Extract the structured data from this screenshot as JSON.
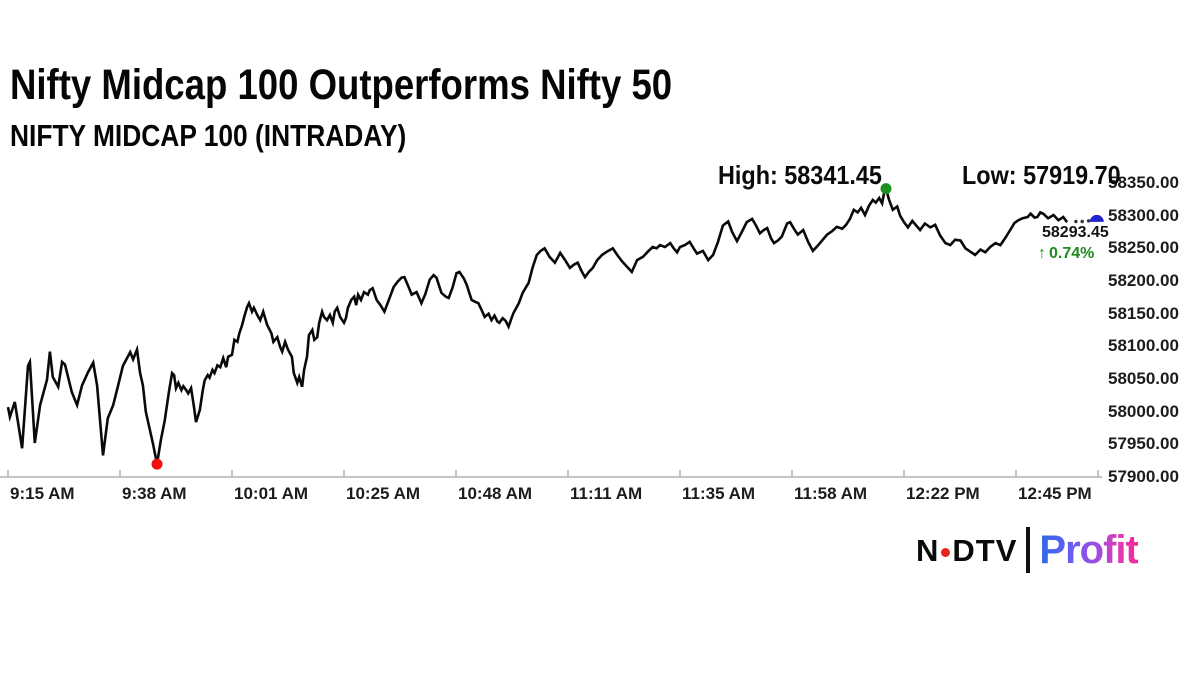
{
  "header": {
    "title": "Nifty Midcap 100 Outperforms Nifty 50",
    "subtitle": "NIFTY MIDCAP 100 (INTRADAY)"
  },
  "annotations": {
    "high_label": "High: 58341.45",
    "low_label": "Low: 57919.70",
    "last_price": "58293.45",
    "change_arrow": "↑",
    "change_pct": "0.74%"
  },
  "logo": {
    "ndtv_n": "N",
    "ndtv_rest": "DTV",
    "profit": "Profit"
  },
  "colors": {
    "line": "#0a0a0a",
    "low_dot": "#f20d0d",
    "high_dot": "#1f8f1f",
    "last_marker": "#2323cf",
    "change_green": "#1e8a1e",
    "axis_gray": "#b3b3b3",
    "ndtv_red": "#e8231e",
    "profit_gradient_start": "#2d6ae6",
    "profit_gradient_end": "#f1279b"
  },
  "chart_data": {
    "type": "line",
    "title": "NIFTY MIDCAP 100 (INTRADAY)",
    "xlabel": "",
    "ylabel": "",
    "ylim": [
      57900,
      58350
    ],
    "grid": false,
    "legend": "none",
    "x_tick_labels": [
      "9:15 AM",
      "9:38 AM",
      "10:01 AM",
      "10:25 AM",
      "10:48 AM",
      "11:11 AM",
      "11:35 AM",
      "11:58 AM",
      "12:22 PM",
      "12:45 PM"
    ],
    "y_tick_labels": [
      "58350.00",
      "58300.00",
      "58250.00",
      "58200.00",
      "58150.00",
      "58100.00",
      "58050.00",
      "58000.00",
      "57950.00",
      "57900.00"
    ],
    "minutes_per_x_tick": 23,
    "summary": {
      "high": 58341.45,
      "low": 57919.7,
      "last": 58293.45,
      "change_pct": 0.74
    },
    "markers": {
      "low": {
        "minute": 30.6,
        "value": 57919.7
      },
      "high": {
        "minute": 180.3,
        "value": 58341.45
      },
      "last": {
        "minute": 223.6,
        "value": 58293.45
      }
    },
    "tail_dots": [
      [
        219.3,
        58291
      ],
      [
        220.6,
        58291
      ],
      [
        221.9,
        58292
      ]
    ],
    "series": [
      {
        "name": "NIFTY MIDCAP 100",
        "points": [
          [
            0,
            58007
          ],
          [
            0.4,
            57992
          ],
          [
            1.4,
            58015
          ],
          [
            2.9,
            57944
          ],
          [
            4.1,
            58070
          ],
          [
            4.5,
            58076
          ],
          [
            5.5,
            57952
          ],
          [
            6.6,
            58010
          ],
          [
            8,
            58049
          ],
          [
            8.6,
            58092
          ],
          [
            9.2,
            58053
          ],
          [
            10.3,
            58038
          ],
          [
            11.1,
            58076
          ],
          [
            11.7,
            58072
          ],
          [
            13.1,
            58030
          ],
          [
            14.2,
            58010
          ],
          [
            15.2,
            58040
          ],
          [
            16.4,
            58060
          ],
          [
            17.5,
            58075
          ],
          [
            18.3,
            58040
          ],
          [
            19.5,
            57933
          ],
          [
            20.5,
            57990
          ],
          [
            21.6,
            58010
          ],
          [
            22.6,
            58040
          ],
          [
            23.6,
            58070
          ],
          [
            25.1,
            58091
          ],
          [
            25.7,
            58080
          ],
          [
            26.5,
            58095
          ],
          [
            27.1,
            58060
          ],
          [
            27.7,
            58040
          ],
          [
            28.3,
            58000
          ],
          [
            29.2,
            57970
          ],
          [
            29.8,
            57950
          ],
          [
            30.6,
            57920
          ],
          [
            31.4,
            57957
          ],
          [
            32.2,
            57987
          ],
          [
            32.5,
            58003
          ],
          [
            33.1,
            58033
          ],
          [
            33.7,
            58059
          ],
          [
            34.1,
            58056
          ],
          [
            34.5,
            58036
          ],
          [
            35,
            58044
          ],
          [
            35.6,
            58033
          ],
          [
            36,
            58039
          ],
          [
            36.6,
            58033
          ],
          [
            37,
            58028
          ],
          [
            37.6,
            58036
          ],
          [
            38.2,
            58007
          ],
          [
            38.6,
            57984
          ],
          [
            39,
            57993
          ],
          [
            39.4,
            58003
          ],
          [
            40,
            58033
          ],
          [
            40.4,
            58048
          ],
          [
            41,
            58056
          ],
          [
            41.4,
            58052
          ],
          [
            42,
            58064
          ],
          [
            42.4,
            58059
          ],
          [
            43,
            58071
          ],
          [
            43.6,
            58068
          ],
          [
            44.2,
            58082
          ],
          [
            44.8,
            58068
          ],
          [
            45.2,
            58084
          ],
          [
            46,
            58087
          ],
          [
            46.5,
            58110
          ],
          [
            47.1,
            58107
          ],
          [
            47.5,
            58120
          ],
          [
            48.1,
            58133
          ],
          [
            48.5,
            58145
          ],
          [
            49.1,
            58160
          ],
          [
            49.5,
            58166
          ],
          [
            50.1,
            58153
          ],
          [
            50.5,
            58159
          ],
          [
            51.2,
            58148
          ],
          [
            51.8,
            58140
          ],
          [
            52.4,
            58153
          ],
          [
            53.2,
            58133
          ],
          [
            54.1,
            58120
          ],
          [
            54.5,
            58107
          ],
          [
            55.3,
            58114
          ],
          [
            55.9,
            58099
          ],
          [
            56.3,
            58092
          ],
          [
            56.9,
            58107
          ],
          [
            57.5,
            58095
          ],
          [
            58.3,
            58084
          ],
          [
            58.7,
            58059
          ],
          [
            59.4,
            58044
          ],
          [
            59.8,
            58053
          ],
          [
            60.4,
            58038
          ],
          [
            60.8,
            58064
          ],
          [
            61.4,
            58084
          ],
          [
            61.8,
            58117
          ],
          [
            62.5,
            58125
          ],
          [
            62.9,
            58110
          ],
          [
            63.5,
            58114
          ],
          [
            63.9,
            58136
          ],
          [
            64.5,
            58153
          ],
          [
            64.9,
            58145
          ],
          [
            65.5,
            58140
          ],
          [
            66.1,
            58148
          ],
          [
            66.7,
            58136
          ],
          [
            67.1,
            58153
          ],
          [
            67.6,
            58159
          ],
          [
            68.2,
            58145
          ],
          [
            69,
            58136
          ],
          [
            69.4,
            58143
          ],
          [
            69.8,
            58159
          ],
          [
            70.5,
            58171
          ],
          [
            71.1,
            58176
          ],
          [
            71.5,
            58163
          ],
          [
            71.9,
            58179
          ],
          [
            72.5,
            58171
          ],
          [
            73.1,
            58183
          ],
          [
            73.9,
            58179
          ],
          [
            74.3,
            58186
          ],
          [
            74.9,
            58189
          ],
          [
            75.7,
            58171
          ],
          [
            76.5,
            58163
          ],
          [
            77.3,
            58153
          ],
          [
            78.4,
            58175
          ],
          [
            79.2,
            58191
          ],
          [
            80,
            58199
          ],
          [
            80.8,
            58205
          ],
          [
            81.4,
            58206
          ],
          [
            82.3,
            58190
          ],
          [
            82.9,
            58179
          ],
          [
            83.9,
            58183
          ],
          [
            84.9,
            58166
          ],
          [
            85.7,
            58180
          ],
          [
            86.6,
            58202
          ],
          [
            87.4,
            58209
          ],
          [
            88,
            58205
          ],
          [
            89,
            58182
          ],
          [
            89.9,
            58176
          ],
          [
            90.5,
            58174
          ],
          [
            91.3,
            58190
          ],
          [
            92.1,
            58212
          ],
          [
            92.7,
            58214
          ],
          [
            93.6,
            58204
          ],
          [
            94.2,
            58194
          ],
          [
            95.2,
            58171
          ],
          [
            96,
            58168
          ],
          [
            96.6,
            58166
          ],
          [
            97.3,
            58155
          ],
          [
            97.9,
            58145
          ],
          [
            98.7,
            58150
          ],
          [
            99.3,
            58140
          ],
          [
            99.9,
            58147
          ],
          [
            100.5,
            58138
          ],
          [
            100.9,
            58136
          ],
          [
            101.6,
            58143
          ],
          [
            102.2,
            58139
          ],
          [
            102.8,
            58130
          ],
          [
            103.4,
            58143
          ],
          [
            103.8,
            58151
          ],
          [
            104.9,
            58166
          ],
          [
            105.7,
            58182
          ],
          [
            106.5,
            58192
          ],
          [
            106.9,
            58197
          ],
          [
            107.7,
            58220
          ],
          [
            108.6,
            58240
          ],
          [
            109.4,
            58246
          ],
          [
            110.2,
            58250
          ],
          [
            111.2,
            58237
          ],
          [
            112.3,
            58228
          ],
          [
            113.4,
            58243
          ],
          [
            114.4,
            58232
          ],
          [
            115.4,
            58220
          ],
          [
            116.2,
            58225
          ],
          [
            117,
            58228
          ],
          [
            117.8,
            58215
          ],
          [
            118.5,
            58206
          ],
          [
            119.3,
            58214
          ],
          [
            120.1,
            58220
          ],
          [
            121,
            58232
          ],
          [
            122,
            58240
          ],
          [
            123,
            58245
          ],
          [
            124.2,
            58250
          ],
          [
            125.1,
            58240
          ],
          [
            126.1,
            58230
          ],
          [
            127.1,
            58222
          ],
          [
            128.1,
            58214
          ],
          [
            129.2,
            58232
          ],
          [
            130.4,
            58237
          ],
          [
            131.4,
            58245
          ],
          [
            132.4,
            58252
          ],
          [
            133.2,
            58250
          ],
          [
            133.9,
            58255
          ],
          [
            134.9,
            58252
          ],
          [
            136,
            58258
          ],
          [
            136.7,
            58250
          ],
          [
            137.4,
            58244
          ],
          [
            138,
            58252
          ],
          [
            139,
            58255
          ],
          [
            140,
            58260
          ],
          [
            140.8,
            58250
          ],
          [
            141.5,
            58242
          ],
          [
            142.7,
            58246
          ],
          [
            143.8,
            58232
          ],
          [
            144.8,
            58240
          ],
          [
            145.8,
            58260
          ],
          [
            146.8,
            58285
          ],
          [
            147.9,
            58291
          ],
          [
            148.7,
            58275
          ],
          [
            149.7,
            58261
          ],
          [
            150.7,
            58275
          ],
          [
            151.7,
            58290
          ],
          [
            152.8,
            58295
          ],
          [
            153.6,
            58285
          ],
          [
            154.4,
            58273
          ],
          [
            155.2,
            58278
          ],
          [
            155.9,
            58281
          ],
          [
            156.7,
            58265
          ],
          [
            157.3,
            58258
          ],
          [
            158.1,
            58262
          ],
          [
            158.9,
            58268
          ],
          [
            160,
            58288
          ],
          [
            160.6,
            58290
          ],
          [
            161.4,
            58280
          ],
          [
            162.2,
            58271
          ],
          [
            163.3,
            58278
          ],
          [
            164.3,
            58260
          ],
          [
            165.3,
            58246
          ],
          [
            166.3,
            58254
          ],
          [
            167.4,
            58264
          ],
          [
            168.2,
            58271
          ],
          [
            169.2,
            58276
          ],
          [
            170.2,
            58283
          ],
          [
            171.3,
            58280
          ],
          [
            172.1,
            58286
          ],
          [
            172.9,
            58295
          ],
          [
            173.7,
            58309
          ],
          [
            174.5,
            58305
          ],
          [
            175.2,
            58312
          ],
          [
            176,
            58301
          ],
          [
            176.8,
            58315
          ],
          [
            177.6,
            58324
          ],
          [
            178.2,
            58320
          ],
          [
            178.9,
            58327
          ],
          [
            179.5,
            58319
          ],
          [
            179.9,
            58334
          ],
          [
            180.3,
            58341.45
          ],
          [
            180.9,
            58325
          ],
          [
            181.7,
            58309
          ],
          [
            182.6,
            58314
          ],
          [
            183.2,
            58300
          ],
          [
            184,
            58290
          ],
          [
            184.8,
            58282
          ],
          [
            185.7,
            58292
          ],
          [
            186.5,
            58285
          ],
          [
            187.3,
            58278
          ],
          [
            188.3,
            58288
          ],
          [
            189.4,
            58282
          ],
          [
            190.4,
            58286
          ],
          [
            191.4,
            58270
          ],
          [
            192.5,
            58258
          ],
          [
            193.5,
            58255
          ],
          [
            194.5,
            58263
          ],
          [
            195.6,
            58262
          ],
          [
            196.6,
            58250
          ],
          [
            197.6,
            58245
          ],
          [
            198.6,
            58240
          ],
          [
            199.7,
            58248
          ],
          [
            200.7,
            58244
          ],
          [
            201.7,
            58252
          ],
          [
            202.8,
            58258
          ],
          [
            203.8,
            58255
          ],
          [
            204.8,
            58266
          ],
          [
            205.8,
            58278
          ],
          [
            206.7,
            58289
          ],
          [
            207.5,
            58293
          ],
          [
            208.3,
            58296
          ],
          [
            209.4,
            58298
          ],
          [
            210,
            58303
          ],
          [
            210.8,
            58297
          ],
          [
            211.4,
            58298
          ],
          [
            212,
            58305
          ],
          [
            212.6,
            58303
          ],
          [
            213.6,
            58296
          ],
          [
            214.7,
            58301
          ],
          [
            215.7,
            58293
          ],
          [
            216.7,
            58298
          ],
          [
            217.5,
            58290
          ]
        ]
      }
    ]
  }
}
